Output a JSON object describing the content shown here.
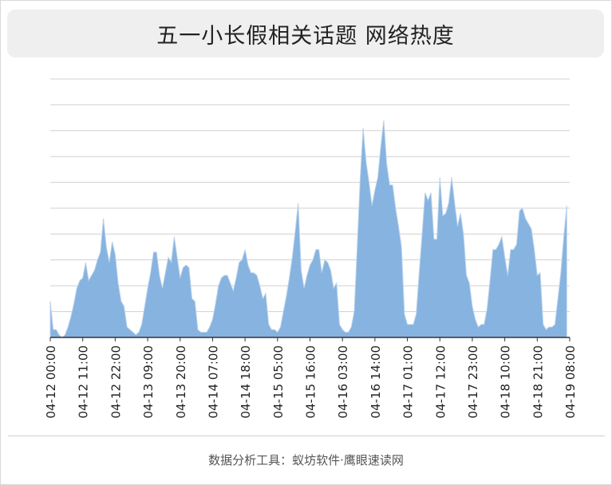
{
  "header": {
    "title": "五一小长假相关话题 网络热度"
  },
  "footer": {
    "source_text": "数据分析工具：蚁坊软件·鹰眼速读网"
  },
  "colors": {
    "area_fill": "#86b3df",
    "area_stroke": "#b9d2ec",
    "grid": "#d0d0d0",
    "axis": "#333333"
  },
  "chart_data": {
    "type": "area",
    "title": "五一小长假相关话题 网络热度",
    "xlabel": "",
    "ylabel": "",
    "ylim": [
      0,
      100
    ],
    "grid": true,
    "legend": "none",
    "tick_labels": [
      "04-12 00:00",
      "04-12 11:00",
      "04-12 22:00",
      "04-13 09:00",
      "04-13 20:00",
      "04-14 07:00",
      "04-14 18:00",
      "04-15 05:00",
      "04-15 16:00",
      "04-16 03:00",
      "04-16 14:00",
      "04-17 01:00",
      "04-17 12:00",
      "04-17 23:00",
      "04-18 10:00",
      "04-18 21:00",
      "04-19 08:00"
    ],
    "hours_per_point": 1,
    "values": [
      14,
      3,
      3,
      1,
      0,
      1,
      4,
      8,
      13,
      19,
      22,
      23,
      29,
      22,
      24,
      26,
      30,
      33,
      46,
      35,
      29,
      37,
      32,
      21,
      14,
      12,
      4,
      3,
      2,
      1,
      2,
      5,
      12,
      19,
      25,
      33,
      33,
      24,
      19,
      25,
      31,
      29,
      39,
      31,
      23,
      27,
      28,
      27,
      15,
      14,
      3,
      2,
      2,
      2,
      4,
      7,
      13,
      20,
      23,
      24,
      24,
      21,
      18,
      23,
      29,
      30,
      34,
      28,
      25,
      25,
      24,
      20,
      15,
      17,
      5,
      3,
      3,
      2,
      4,
      10,
      16,
      23,
      31,
      41,
      52,
      26,
      19,
      24,
      28,
      30,
      34,
      34,
      25,
      30,
      29,
      26,
      19,
      21,
      5,
      3,
      2,
      2,
      4,
      10,
      35,
      61,
      81,
      68,
      60,
      51,
      57,
      62,
      74,
      84,
      67,
      59,
      59,
      50,
      43,
      35,
      9,
      5,
      5,
      5,
      9,
      25,
      40,
      56,
      53,
      56,
      38,
      38,
      62,
      47,
      48,
      52,
      62,
      52,
      43,
      48,
      40,
      24,
      21,
      12,
      7,
      4,
      5,
      5,
      11,
      22,
      34,
      34,
      36,
      39,
      31,
      24,
      34,
      34,
      36,
      49,
      50,
      46,
      44,
      42,
      34,
      24,
      25,
      5,
      3,
      4,
      4,
      5,
      15,
      25,
      39,
      51
    ]
  }
}
